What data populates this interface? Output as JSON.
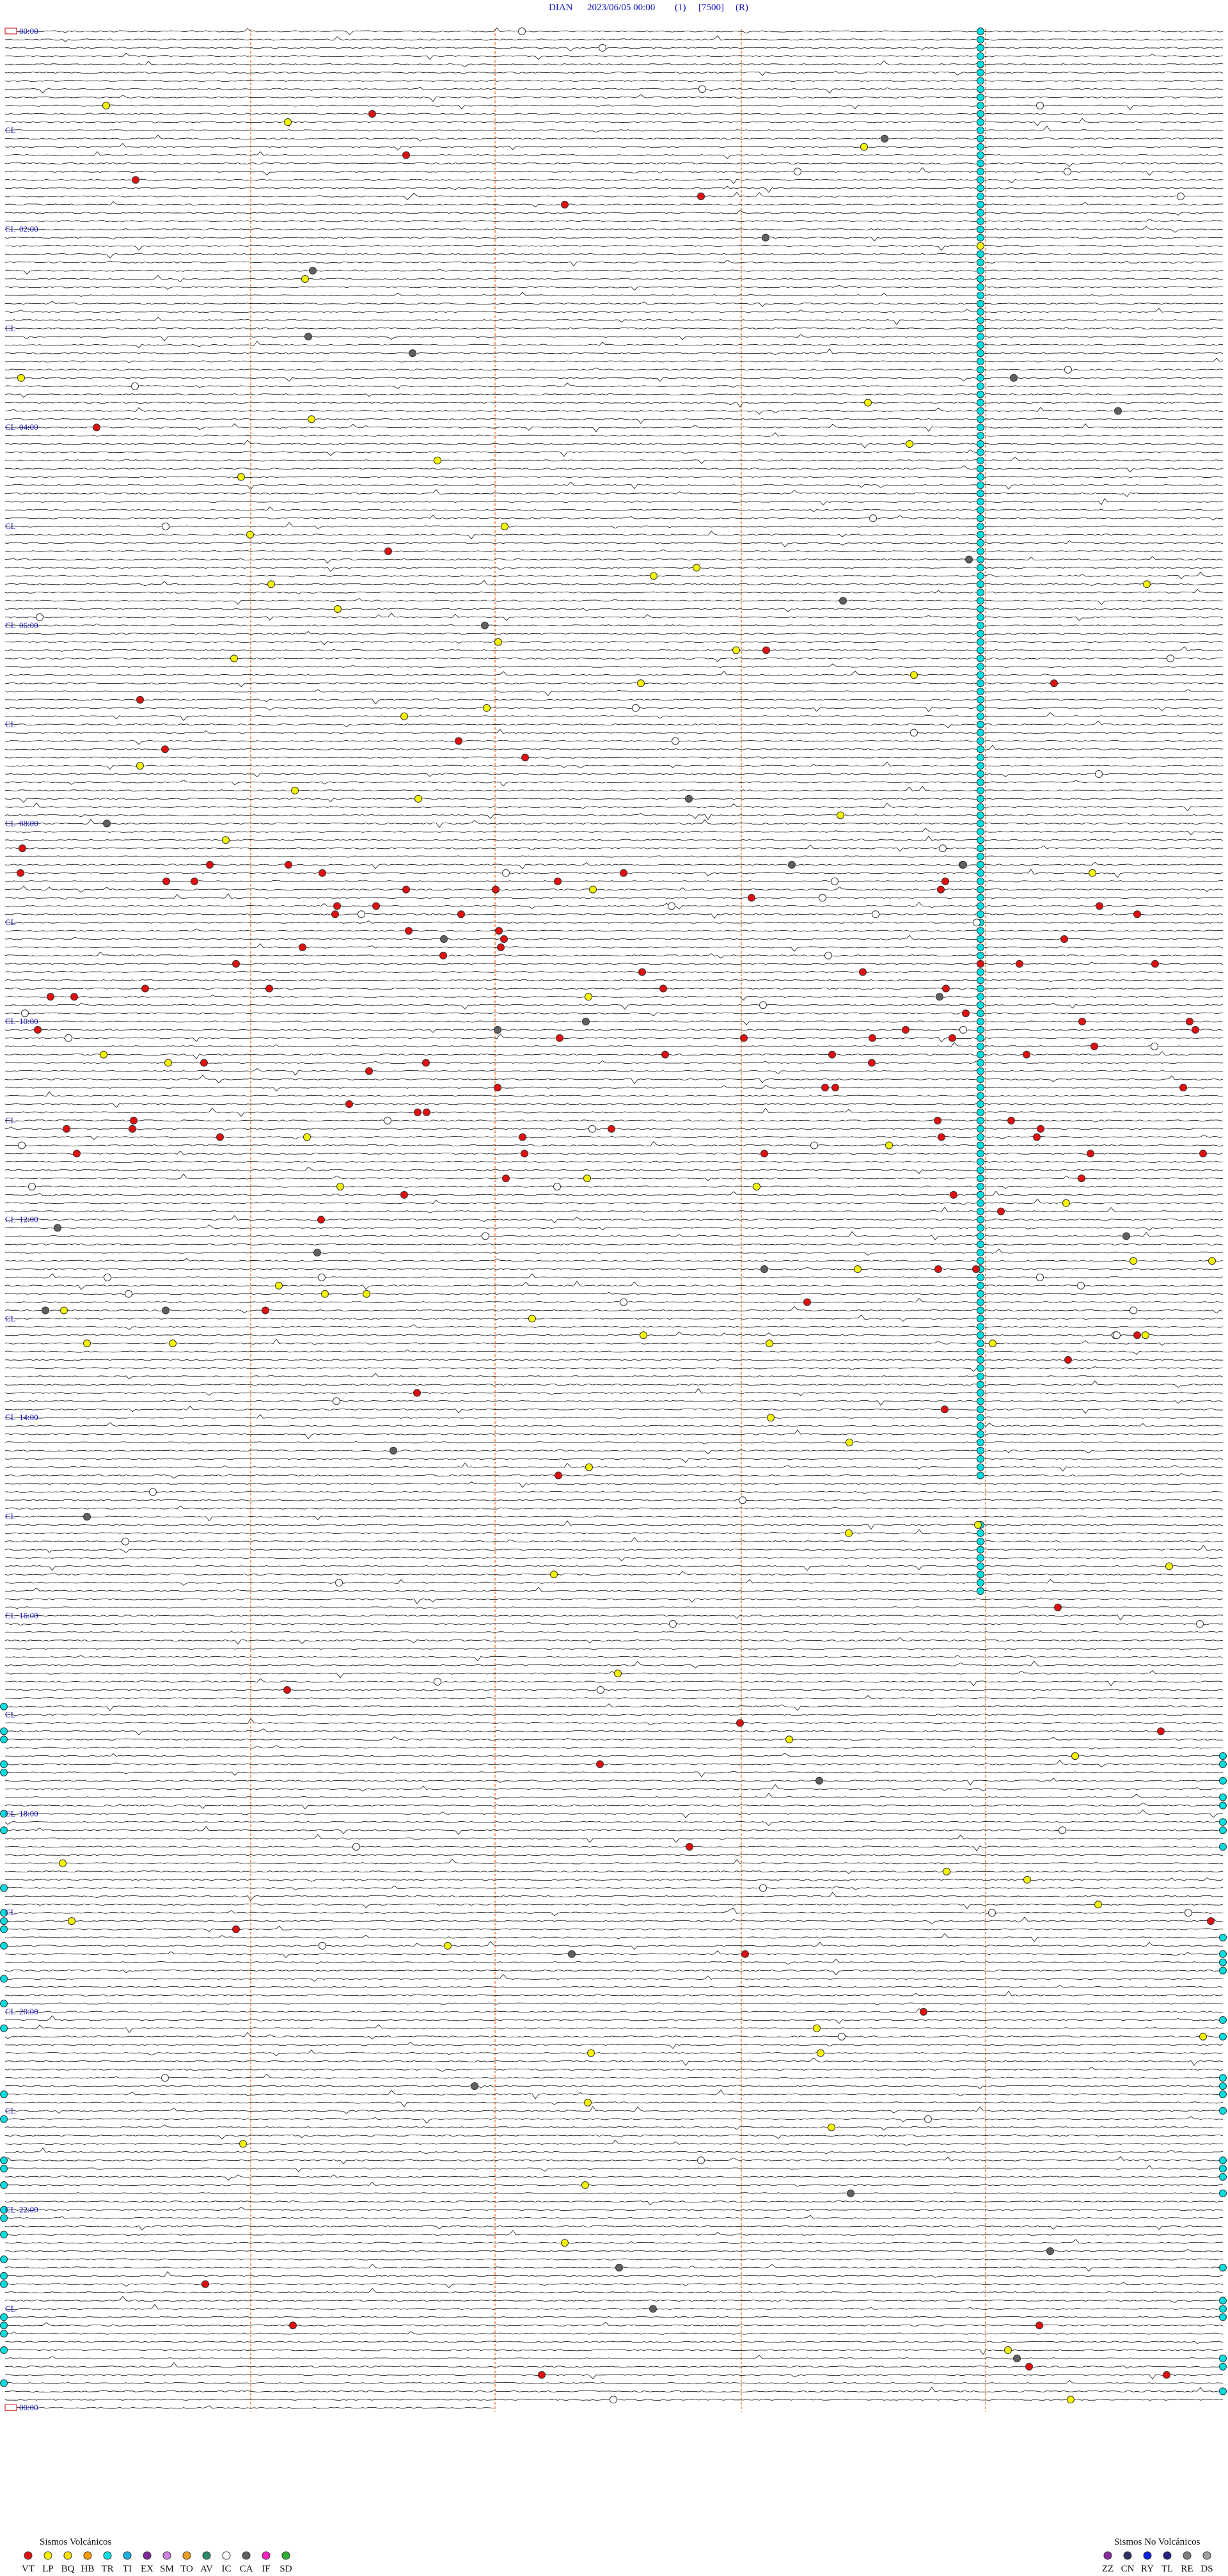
{
  "header": {
    "station": "DIAN",
    "datetime": "2023/06/05 00:00",
    "channel": "(1)",
    "scale": "[7500]",
    "mode": "(R)"
  },
  "marker": "CL",
  "time_labels": [
    "00:00",
    "02:00",
    "04:00",
    "06:00",
    "08:00",
    "10:00",
    "12:00",
    "14:00",
    "16:00",
    "18:00",
    "20:00",
    "22:00",
    "00:00"
  ],
  "legend": {
    "volcanic": {
      "title": "Sismos Volcánicos",
      "items": [
        {
          "code": "VT",
          "color": "#e01010"
        },
        {
          "code": "LP",
          "color": "#f5f500"
        },
        {
          "code": "BQ",
          "color": "#f5e000"
        },
        {
          "code": "HB",
          "color": "#ff9900"
        },
        {
          "code": "TR",
          "color": "#00e0e0"
        },
        {
          "code": "TI",
          "color": "#1ab0e0"
        },
        {
          "code": "EX",
          "color": "#7a2a9a"
        },
        {
          "code": "SM",
          "color": "#d080e0"
        },
        {
          "code": "TO",
          "color": "#f0a020"
        },
        {
          "code": "AV",
          "color": "#2a8a6a"
        },
        {
          "code": "IC",
          "color": "#ffffff"
        },
        {
          "code": "CA",
          "color": "#606060"
        },
        {
          "code": "IF",
          "color": "#ff20c0"
        },
        {
          "code": "SD",
          "color": "#30b030"
        }
      ]
    },
    "non_volcanic": {
      "title": "Sismos No Volcánicos",
      "items": [
        {
          "code": "ZZ",
          "color": "#8a2aa0"
        },
        {
          "code": "CN",
          "color": "#303060"
        },
        {
          "code": "RY",
          "color": "#1020e0"
        },
        {
          "code": "TL",
          "color": "#202080"
        },
        {
          "code": "RE",
          "color": "#808080"
        },
        {
          "code": "DS",
          "color": "#a0a0a0"
        }
      ]
    }
  }
}
